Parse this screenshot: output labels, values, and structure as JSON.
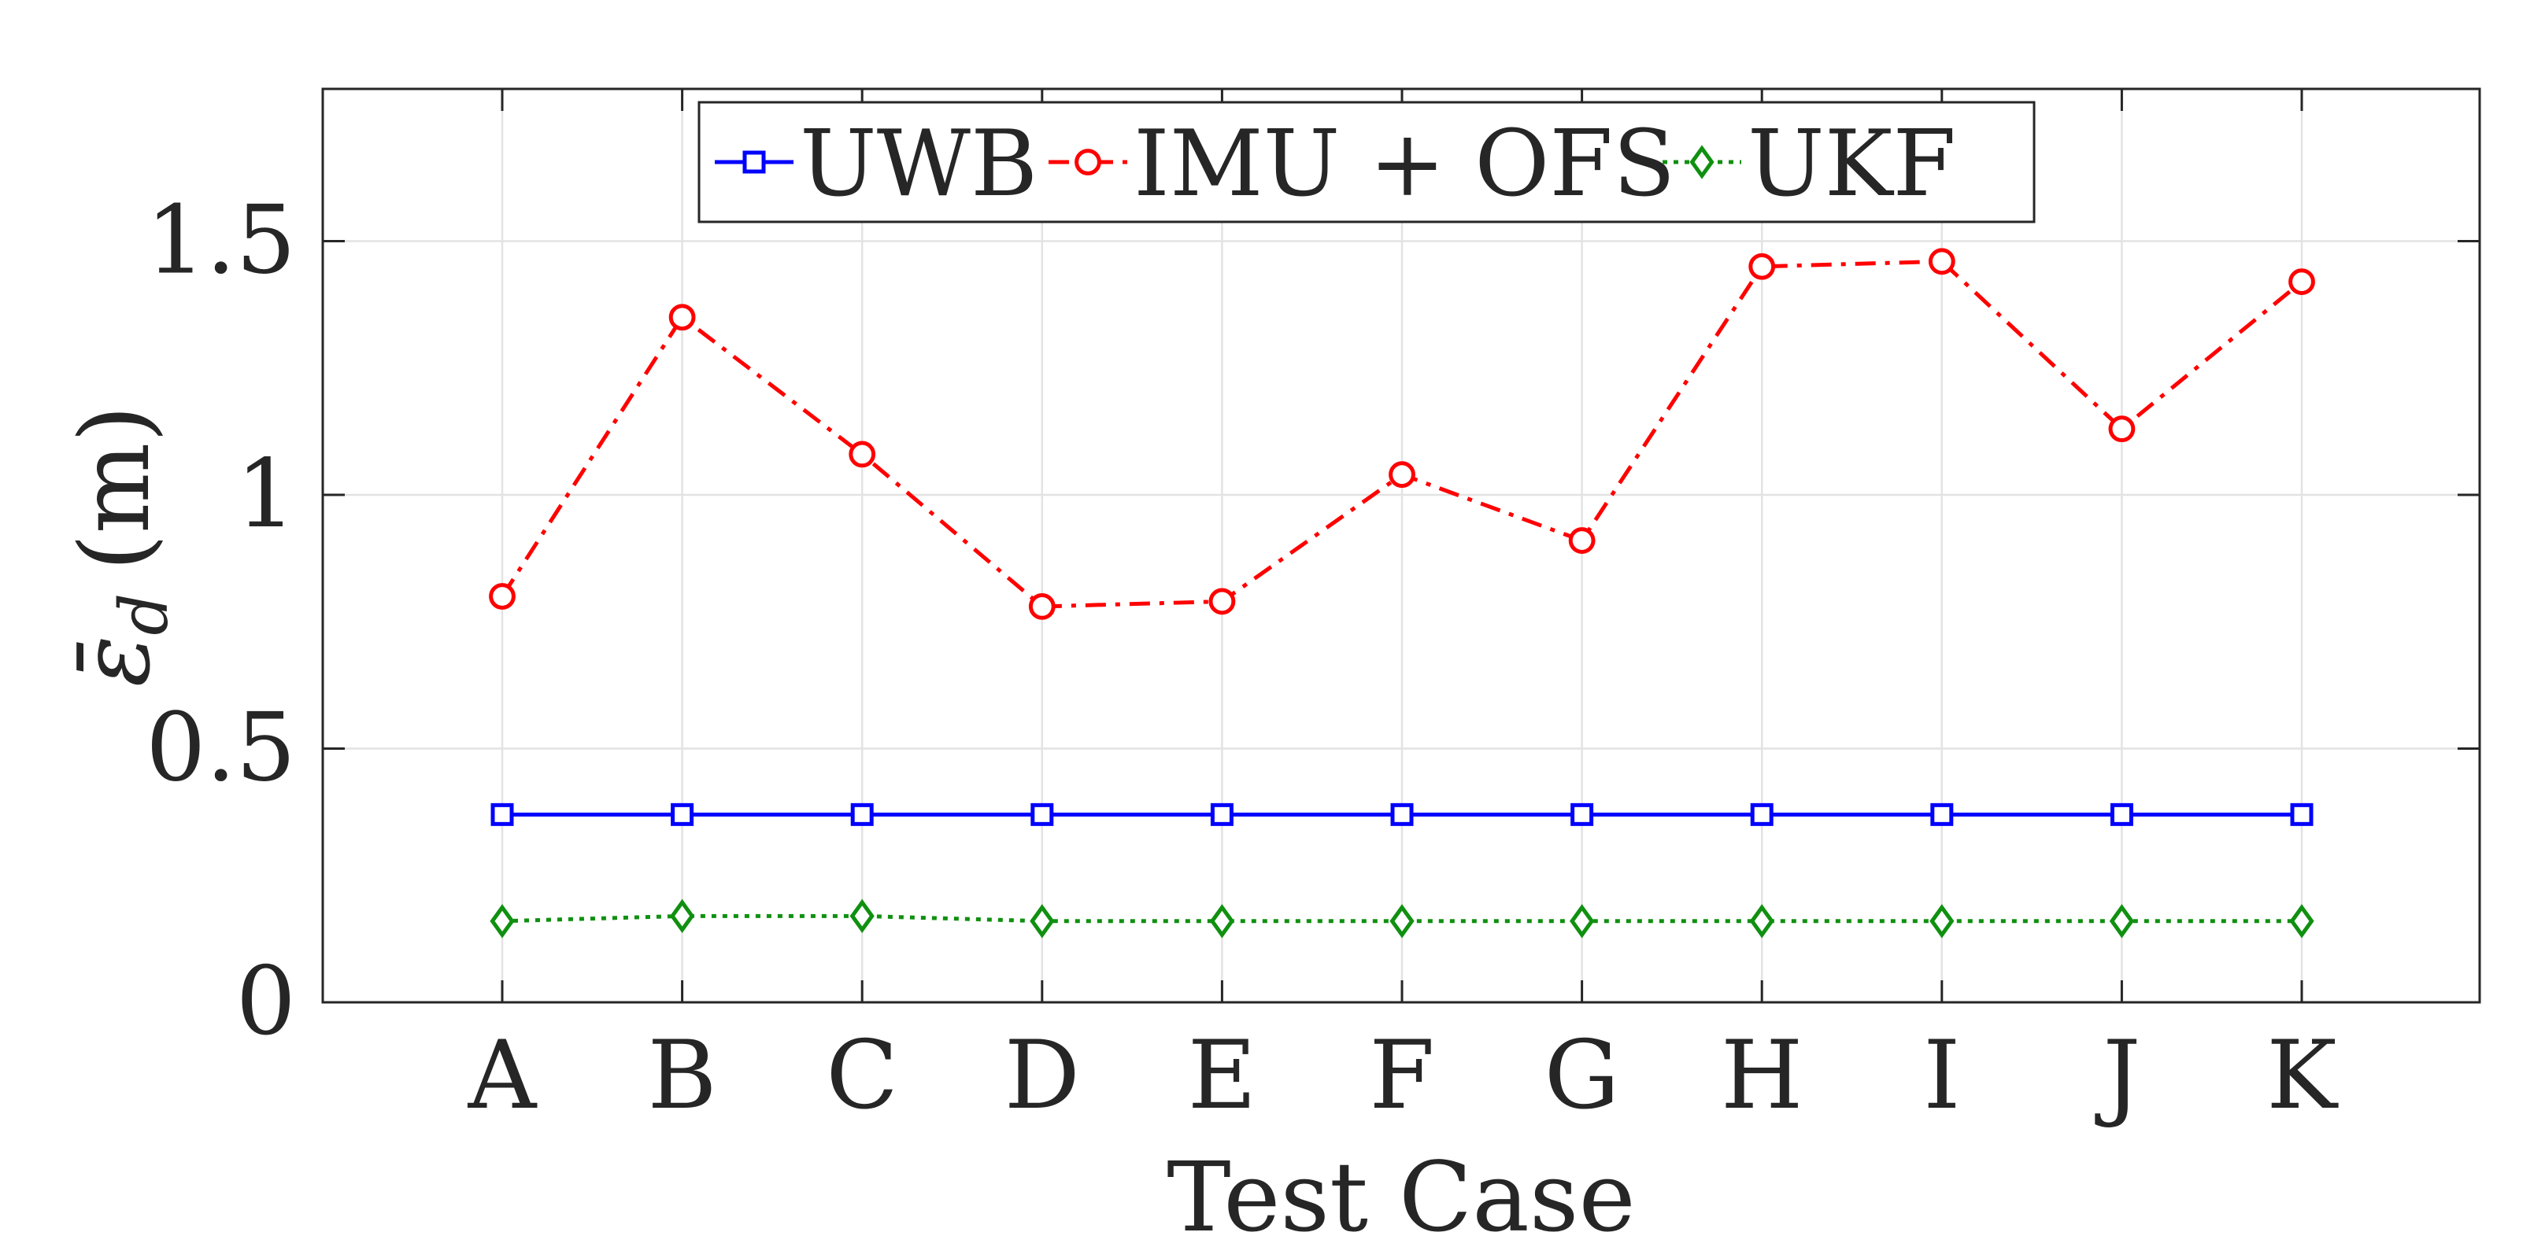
{
  "chart_data": {
    "type": "line",
    "title": "",
    "xlabel": "Test Case",
    "ylabel": "(m)",
    "ylabel_symbol": "ε̄",
    "ylabel_subscript": "d",
    "categories": [
      "A",
      "B",
      "C",
      "D",
      "E",
      "F",
      "G",
      "H",
      "I",
      "J",
      "K"
    ],
    "ylim": [
      0,
      1.8
    ],
    "yticks": [
      0,
      0.5,
      1,
      1.5
    ],
    "ytick_labels": [
      "0",
      "0.5",
      "1",
      "1.5"
    ],
    "grid": true,
    "legend_position": "top-center, horizontal",
    "series": [
      {
        "name": "UWB",
        "color": "#0000ff",
        "line_style": "solid",
        "marker": "square",
        "values": [
          0.37,
          0.37,
          0.37,
          0.37,
          0.37,
          0.37,
          0.37,
          0.37,
          0.37,
          0.37,
          0.37
        ]
      },
      {
        "name": "IMU + OFS",
        "color": "#ff0000",
        "line_style": "dash-dot",
        "marker": "circle",
        "values": [
          0.8,
          1.35,
          1.08,
          0.78,
          0.79,
          1.04,
          0.91,
          1.45,
          1.46,
          1.13,
          1.42
        ]
      },
      {
        "name": "UKF",
        "color": "#109010",
        "line_style": "dotted",
        "marker": "diamond",
        "values": [
          0.16,
          0.17,
          0.17,
          0.16,
          0.16,
          0.16,
          0.16,
          0.16,
          0.16,
          0.16,
          0.16
        ]
      }
    ]
  }
}
